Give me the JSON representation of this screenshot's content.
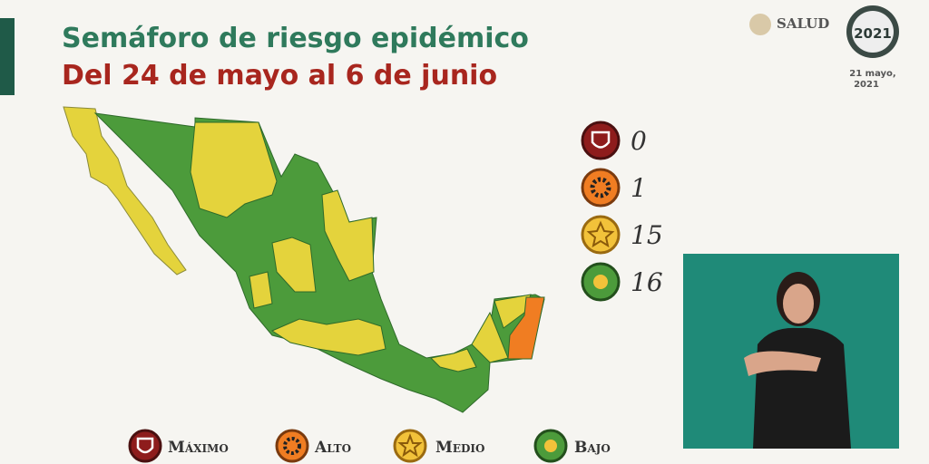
{
  "header": {
    "title": "Semáforo de riesgo epidémico",
    "subtitle": "Del 24 de mayo al 6 de junio"
  },
  "logo": {
    "name": "SALUD",
    "badge_year": "2021"
  },
  "date": [
    "21 mayo,",
    "2021"
  ],
  "summary": [
    {
      "count": 0
    },
    {
      "count": 1
    },
    {
      "count": 15
    },
    {
      "count": 16
    }
  ],
  "legend": [
    "Máximo",
    "Alto",
    "Medio",
    "Bajo"
  ]
}
